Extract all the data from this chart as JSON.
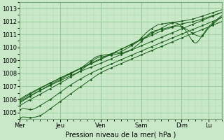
{
  "xlabel": "Pression niveau de la mer( hPa )",
  "ylim": [
    1004.5,
    1013.5
  ],
  "yticks": [
    1005,
    1006,
    1007,
    1008,
    1009,
    1010,
    1011,
    1012,
    1013
  ],
  "day_labels": [
    "Mer",
    "Jeu",
    "Ven",
    "Sam",
    "Dim",
    "Lu"
  ],
  "day_positions": [
    0.0,
    0.2,
    0.4,
    0.6,
    0.8,
    0.933
  ],
  "xlim": [
    0.0,
    1.0
  ],
  "bg_color": "#c8e8c8",
  "grid_major_color": "#99cc99",
  "grid_minor_color": "#b3d9b3",
  "line_color": "#1a5c1a",
  "figsize": [
    3.2,
    2.0
  ],
  "dpi": 100
}
